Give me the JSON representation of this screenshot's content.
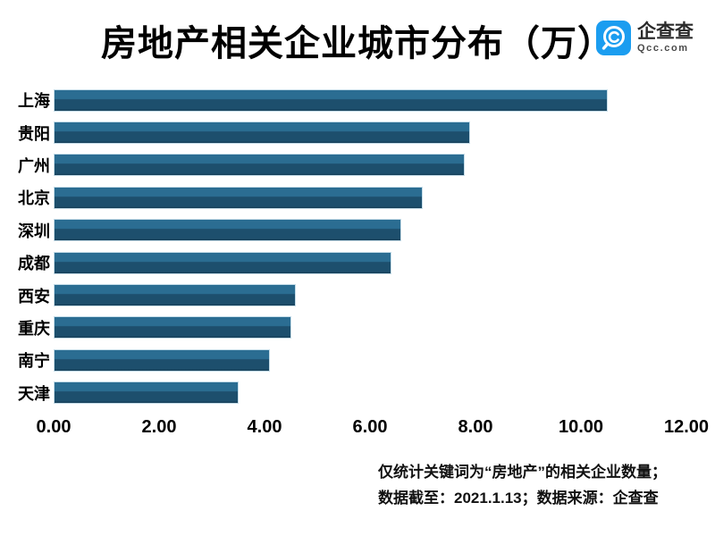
{
  "title": "房地产相关企业城市分布（万）",
  "logo": {
    "name": "企查查",
    "domain": "Qcc.com",
    "brand_color": "#1b9df0"
  },
  "chart_data": {
    "type": "bar",
    "orientation": "horizontal",
    "title": "房地产相关企业城市分布（万）",
    "categories": [
      "上海",
      "贵阳",
      "广州",
      "北京",
      "深圳",
      "成都",
      "西安",
      "重庆",
      "南宁",
      "天津"
    ],
    "values": [
      10.5,
      7.9,
      7.8,
      7.0,
      6.6,
      6.4,
      4.6,
      4.5,
      4.1,
      3.5
    ],
    "xlabel": "",
    "ylabel": "",
    "xlim": [
      0,
      12
    ],
    "tick_labels": [
      "0.00",
      "2.00",
      "4.00",
      "6.00",
      "8.00",
      "10.00",
      "12.00"
    ],
    "grid": "off",
    "legend": "none",
    "bar_color_top": "#2b6d92",
    "bar_color_bottom": "#1d4f6d",
    "bar_edge_color": "#c6dde9"
  },
  "footer": {
    "line1": "仅统计关键词为“房地产”的相关企业数量；",
    "line2": "数据截至：2021.1.13；数据来源：企查查"
  }
}
